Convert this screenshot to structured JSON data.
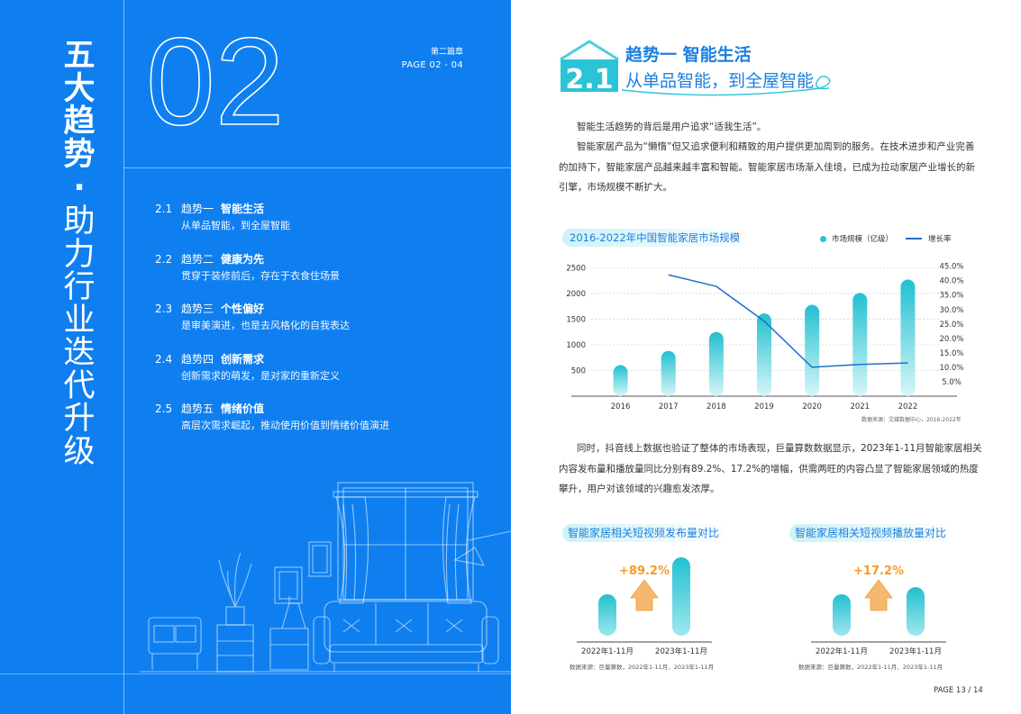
{
  "left": {
    "vertical_title_bold": [
      "五",
      "大",
      "趋",
      "势"
    ],
    "vertical_title_sep": "·",
    "vertical_title_regular": [
      "助",
      "力",
      "行",
      "业",
      "迭",
      "代",
      "升",
      "级"
    ],
    "big_number": "02",
    "chapter": "第二篇章",
    "page_ref": "PAGE  02 - 04",
    "toc": [
      {
        "num": "2.1",
        "name": "趋势一",
        "keyword": "智能生活",
        "sub": "从单品智能，到全屋智能"
      },
      {
        "num": "2.2",
        "name": "趋势二",
        "keyword": "健康为先",
        "sub": "贯穿于装修前后，存在于衣食住场景"
      },
      {
        "num": "2.3",
        "name": "趋势三",
        "keyword": "个性偏好",
        "sub": "是审美演进，也是去风格化的自我表达"
      },
      {
        "num": "2.4",
        "name": "趋势四",
        "keyword": "创新需求",
        "sub": "创新需求的萌发，是对家的重新定义"
      },
      {
        "num": "2.5",
        "name": "趋势五",
        "keyword": "情绪价值",
        "sub": "高层次需求崛起，推动使用价值到情绪价值演进"
      }
    ]
  },
  "right": {
    "section_badge": "2.1",
    "section_title": "趋势一 智能生活",
    "section_subtitle": "从单品智能，到全屋智能",
    "para1": "智能生活趋势的背后是用户追求“适我生活”。",
    "para2": "智能家居产品为“懒惰”但又追求便利和精致的用户提供更加周到的服务。在技术进步和产业完善的加持下，智能家居产品越来越丰富和智能。智能家居市场渐入佳境，已成为拉动家居产业增长的新引擎，市场规模不断扩大。",
    "para3": "同时，抖音线上数据也验证了整体的市场表现，巨量算数数据显示，2023年1-11月智能家居相关内容发布量和播放量同比分别有89.2%、17.2%的增幅，供需两旺的内容凸显了智能家居领域的热度攀升，用户对该领域的兴趣愈发浓厚。",
    "chart_title": "2016-2022年中国智能家居市场规模",
    "legend_bar": "市场规模（亿级）",
    "legend_line": "增长率",
    "source1": "数据来源：艾媒数据中心，2016-2022年",
    "sub_chart1_title": "智能家居相关短视频发布量对比",
    "sub_chart2_title": "智能家居相关短视频播放量对比",
    "source2": "数据来源：巨量算数，2022年1-11月、2023年1-11月",
    "page_number": "PAGE 13 / 14"
  },
  "colors": {
    "blue": "#0f7ff0",
    "accent": "#1b7fe0",
    "teal": "#28c4d4",
    "line": "#1f6fd0",
    "orange": "#f59a2a"
  },
  "chart_data": [
    {
      "type": "bar",
      "title": "2016-2022年中国智能家居市场规模",
      "categories": [
        "2016",
        "2017",
        "2018",
        "2019",
        "2020",
        "2021",
        "2022"
      ],
      "series": [
        {
          "name": "市场规模（亿级）",
          "type": "bar",
          "values": [
            605,
            880,
            1250,
            1610,
            1780,
            2010,
            2270
          ]
        },
        {
          "name": "增长率",
          "type": "line",
          "axis": "right",
          "values": [
            null,
            0.42,
            0.38,
            0.26,
            0.1,
            0.11,
            0.115
          ]
        }
      ],
      "y_ticks": [
        500,
        1000,
        1500,
        2000,
        2500
      ],
      "y2_ticks": [
        "5.0%",
        "10.0%",
        "15.0%",
        "20.0%",
        "25.0%",
        "30.0%",
        "35.0%",
        "40.0%",
        "45.0%"
      ],
      "ylim": [
        0,
        2700
      ],
      "y2lim": [
        0,
        0.48
      ],
      "grid": true,
      "legend": "top-right"
    },
    {
      "type": "bar",
      "title": "智能家居相关短视频发布量对比",
      "categories": [
        "2022年1-11月",
        "2023年1-11月"
      ],
      "values": [
        1,
        1.892
      ],
      "annotation": "+89.2%"
    },
    {
      "type": "bar",
      "title": "智能家居相关短视频播放量对比",
      "categories": [
        "2022年1-11月",
        "2023年1-11月"
      ],
      "values": [
        1,
        1.172
      ],
      "annotation": "+17.2%"
    }
  ]
}
